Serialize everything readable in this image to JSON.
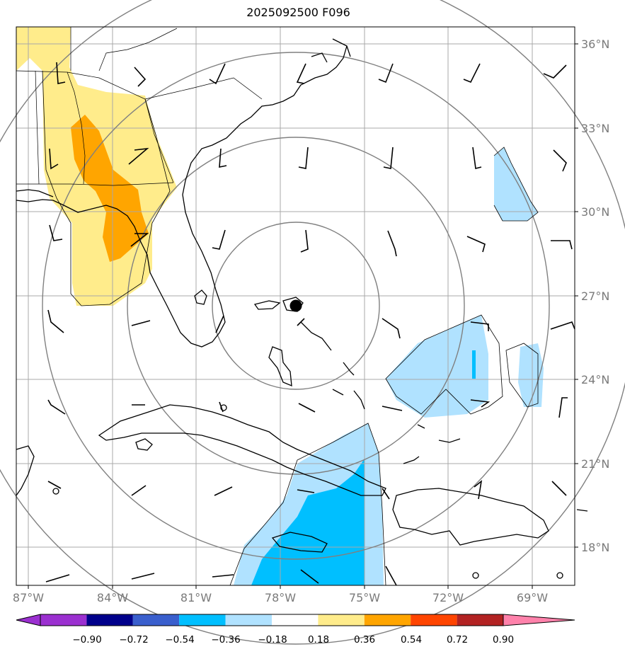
{
  "title": "2025092500 F096",
  "lat_labels": [
    "36°N",
    "33°N",
    "30°N",
    "27°N",
    "24°N",
    "21°N",
    "18°N"
  ],
  "lon_labels": [
    "87°W",
    "84°W",
    "81°W",
    "78°W",
    "75°W",
    "72°W",
    "69°W"
  ],
  "colorbar": {
    "ticks": [
      "−0.90",
      "−0.72",
      "−0.54",
      "−0.36",
      "−0.18",
      "0.18",
      "0.36",
      "0.54",
      "0.72",
      "0.90"
    ],
    "colors": [
      "#9b30d0",
      "#00008b",
      "#3a5fcd",
      "#00bfff",
      "#b0e2ff",
      "#ffffff",
      "#ffec8b",
      "#ffa500",
      "#ff4500",
      "#b22222",
      "#ff82ab"
    ]
  },
  "storm_center": {
    "lat": 26.6,
    "lon": -77.4
  },
  "colors": {
    "land_outline": "#000000",
    "range_ring": "#808080",
    "grid": "#a0a0a0"
  }
}
